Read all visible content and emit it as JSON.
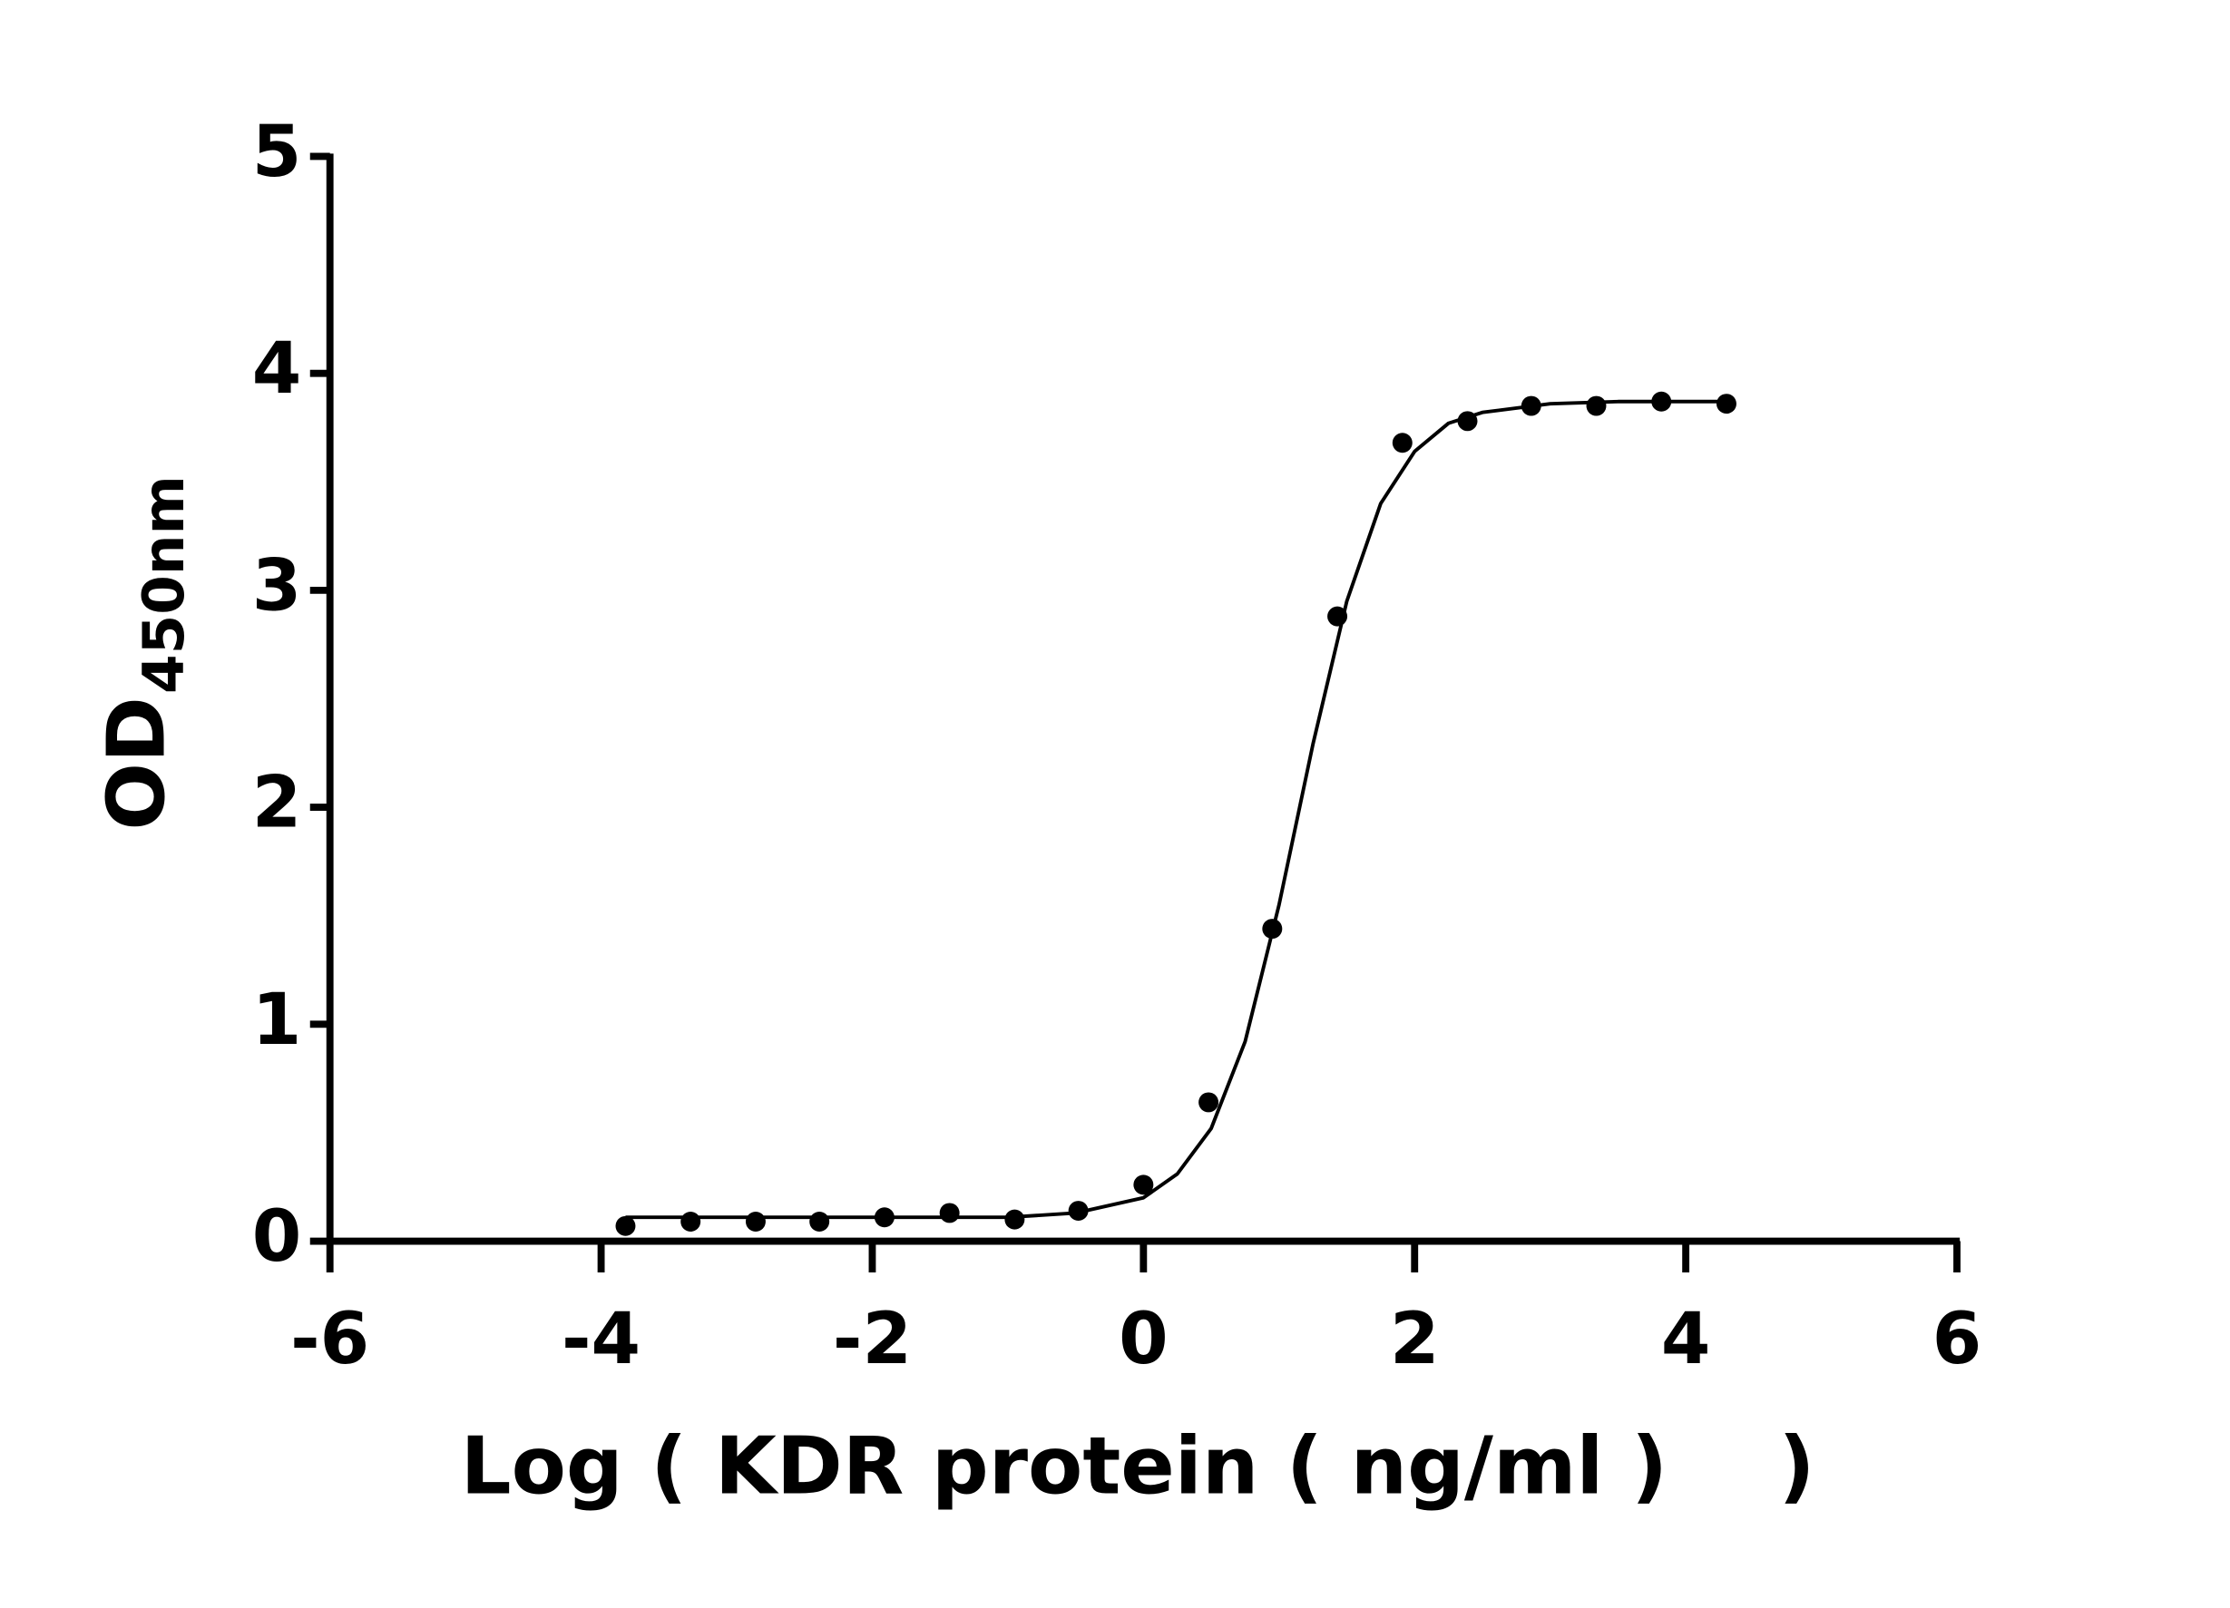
{
  "chart_data": {
    "type": "scatter",
    "xlabel": "Log ( KDR protein ( ng/ml )    )",
    "ylabel": "OD",
    "ylabel_sub": "450nm",
    "xlim": [
      -6,
      6
    ],
    "xticks": [
      -6,
      -4,
      -2,
      0,
      2,
      4,
      6
    ],
    "ylim": [
      0,
      5
    ],
    "yticks": [
      0,
      1,
      2,
      3,
      4,
      5
    ],
    "grid": false,
    "series": [
      {
        "type": "scatter",
        "color": "#000000",
        "x": [
          -3.82,
          -3.34,
          -2.86,
          -2.39,
          -1.91,
          -1.43,
          -0.95,
          -0.48,
          0,
          0.48,
          0.95,
          1.43,
          1.91,
          2.39,
          2.86,
          3.34,
          3.82,
          4.3
        ],
        "values": [
          0.07,
          0.09,
          0.09,
          0.09,
          0.11,
          0.13,
          0.1,
          0.14,
          0.26,
          0.64,
          1.44,
          2.88,
          3.68,
          3.78,
          3.85,
          3.85,
          3.87,
          3.86
        ]
      },
      {
        "type": "line",
        "color": "#000000",
        "x": [
          -3.82,
          -3,
          -2,
          -1,
          -0.5,
          0,
          0.25,
          0.5,
          0.75,
          1,
          1.25,
          1.5,
          1.75,
          2,
          2.25,
          2.5,
          3,
          3.5,
          4.3
        ],
        "values": [
          0.11,
          0.11,
          0.11,
          0.11,
          0.13,
          0.2,
          0.31,
          0.52,
          0.92,
          1.55,
          2.29,
          2.95,
          3.4,
          3.64,
          3.77,
          3.82,
          3.86,
          3.87,
          3.87
        ]
      }
    ]
  }
}
